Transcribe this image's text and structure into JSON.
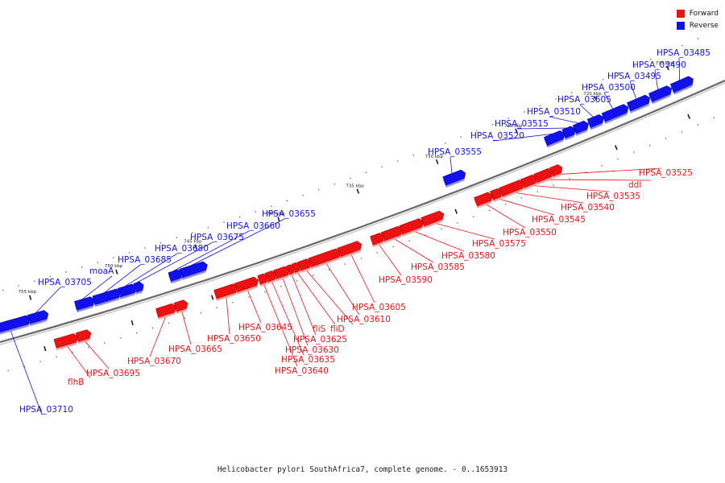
{
  "title": "Helicobacter pylori SouthAfrica7, complete genome. - 0..1653913",
  "legend": [
    {
      "label": "Forward",
      "color": "#ee1111"
    },
    {
      "label": "Reverse",
      "color": "#1111ee"
    }
  ],
  "colors": {
    "forward": "#ee1111",
    "reverse": "#1111ee",
    "axis": "#666666"
  },
  "ticks": [
    {
      "label": "715 kbp",
      "t": 0.94
    },
    {
      "label": "720 kbp",
      "t": 0.84
    },
    {
      "label": "725 kbp",
      "t": 0.73
    },
    {
      "label": "730 kbp",
      "t": 0.62
    },
    {
      "label": "735 kbp",
      "t": 0.51
    },
    {
      "label": "740 kbp",
      "t": 0.4
    },
    {
      "label": "745 kbp",
      "t": 0.285
    },
    {
      "label": "750 kbp",
      "t": 0.175
    },
    {
      "label": "755 kbp",
      "t": 0.055
    }
  ],
  "genes": [
    {
      "name": "HPSA_03485",
      "strand": "reverse",
      "start": 0.935,
      "end": 0.96
    },
    {
      "name": "HPSA_03490",
      "strand": "reverse",
      "start": 0.905,
      "end": 0.93
    },
    {
      "name": "HPSA_03495",
      "strand": "reverse",
      "start": 0.875,
      "end": 0.9
    },
    {
      "name": "HPSA_03500",
      "strand": "reverse",
      "start": 0.84,
      "end": 0.87
    },
    {
      "name": "HPSA_03505",
      "strand": "reverse",
      "start": 0.82,
      "end": 0.836
    },
    {
      "name": "HPSA_03510",
      "strand": "reverse",
      "start": 0.8,
      "end": 0.815
    },
    {
      "name": "HPSA_03515",
      "strand": "reverse",
      "start": 0.785,
      "end": 0.797
    },
    {
      "name": "HPSA_03520",
      "strand": "reverse",
      "start": 0.76,
      "end": 0.782
    },
    {
      "name": "HPSA_03555",
      "strand": "reverse",
      "start": 0.62,
      "end": 0.645
    },
    {
      "name": "HPSA_03525",
      "strand": "forward",
      "start": 0.752,
      "end": 0.763
    },
    {
      "name": "ddl",
      "strand": "forward",
      "start": 0.73,
      "end": 0.75
    },
    {
      "name": "HPSA_03535",
      "strand": "forward",
      "start": 0.712,
      "end": 0.728
    },
    {
      "name": "HPSA_03540",
      "strand": "forward",
      "start": 0.682,
      "end": 0.71
    },
    {
      "name": "HPSA_03545",
      "strand": "forward",
      "start": 0.67,
      "end": 0.68
    },
    {
      "name": "HPSA_03550",
      "strand": "forward",
      "start": 0.648,
      "end": 0.667
    },
    {
      "name": "HPSA_03575",
      "strand": "forward",
      "start": 0.575,
      "end": 0.6
    },
    {
      "name": "HPSA_03580",
      "strand": "forward",
      "start": 0.545,
      "end": 0.572
    },
    {
      "name": "HPSA_03585",
      "strand": "forward",
      "start": 0.52,
      "end": 0.543
    },
    {
      "name": "HPSA_03590",
      "strand": "forward",
      "start": 0.505,
      "end": 0.518
    },
    {
      "name": "HPSA_03605",
      "strand": "forward",
      "start": 0.46,
      "end": 0.487
    },
    {
      "name": "HPSA_03610",
      "strand": "forward",
      "start": 0.42,
      "end": 0.458
    },
    {
      "name": "fliD",
      "strand": "forward",
      "start": 0.405,
      "end": 0.418
    },
    {
      "name": "fliS",
      "strand": "forward",
      "start": 0.397,
      "end": 0.403
    },
    {
      "name": "HPSA_03625",
      "strand": "forward",
      "start": 0.39,
      "end": 0.395
    },
    {
      "name": "HPSA_03630",
      "strand": "forward",
      "start": 0.372,
      "end": 0.388
    },
    {
      "name": "HPSA_03635",
      "strand": "forward",
      "start": 0.36,
      "end": 0.37
    },
    {
      "name": "HPSA_03640",
      "strand": "forward",
      "start": 0.35,
      "end": 0.358
    },
    {
      "name": "HPSA_03645",
      "strand": "forward",
      "start": 0.318,
      "end": 0.345
    },
    {
      "name": "HPSA_03650",
      "strand": "forward",
      "start": 0.29,
      "end": 0.316
    },
    {
      "name": "HPSA_03655",
      "strand": "reverse",
      "start": 0.255,
      "end": 0.288
    },
    {
      "name": "HPSA_03660",
      "strand": "reverse",
      "start": 0.24,
      "end": 0.253
    },
    {
      "name": "HPSA_03665",
      "strand": "forward",
      "start": 0.235,
      "end": 0.248
    },
    {
      "name": "HPSA_03670",
      "strand": "forward",
      "start": 0.21,
      "end": 0.232
    },
    {
      "name": "HPSA_03675",
      "strand": "reverse",
      "start": 0.192,
      "end": 0.2
    },
    {
      "name": "HPSA_03680",
      "strand": "reverse",
      "start": 0.17,
      "end": 0.19
    },
    {
      "name": "HPSA_03685",
      "strand": "reverse",
      "start": 0.135,
      "end": 0.168
    },
    {
      "name": "moaA",
      "strand": "reverse",
      "start": 0.11,
      "end": 0.132
    },
    {
      "name": "HPSA_03695",
      "strand": "forward",
      "start": 0.1,
      "end": 0.115
    },
    {
      "name": "flhB",
      "strand": "forward",
      "start": 0.07,
      "end": 0.097
    },
    {
      "name": "HPSA_03705",
      "strand": "reverse",
      "start": 0.045,
      "end": 0.068
    },
    {
      "name": "HPSA_03710",
      "strand": "reverse",
      "start": -0.01,
      "end": 0.043
    }
  ]
}
